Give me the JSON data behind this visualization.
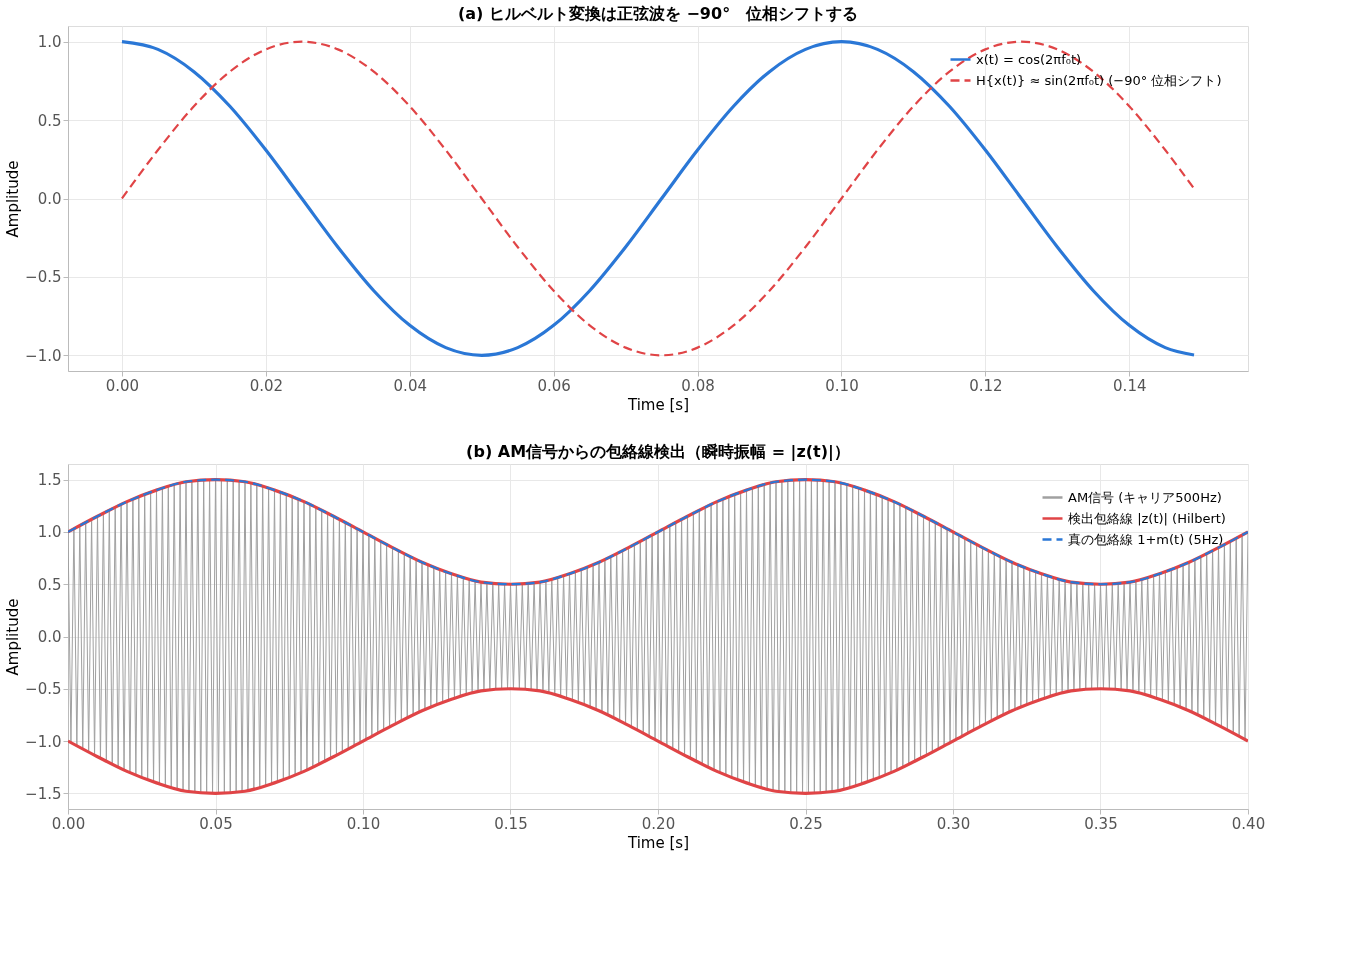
{
  "chart_data": [
    {
      "type": "line",
      "title": "(a) ヒルベルト変換は正弦波を −90°　位相シフトする",
      "xlabel": "Time [s]",
      "ylabel": "Amplitude",
      "x": [
        0,
        0.005,
        0.01,
        0.015,
        0.02,
        0.025,
        0.03,
        0.035,
        0.04,
        0.045,
        0.05,
        0.055,
        0.06,
        0.065,
        0.07,
        0.075,
        0.08,
        0.085,
        0.09,
        0.095,
        0.1,
        0.105,
        0.11,
        0.115,
        0.12,
        0.125,
        0.13,
        0.135,
        0.14,
        0.145,
        0.149
      ],
      "series": [
        {
          "name": "x(t) = cos(2πf₀t)",
          "color": "#2a77d6",
          "line_style": "solid",
          "values": [
            1,
            0.951,
            0.809,
            0.588,
            0.309,
            0,
            -0.309,
            -0.588,
            -0.809,
            -0.951,
            -1,
            -0.951,
            -0.809,
            -0.588,
            -0.309,
            0,
            0.309,
            0.588,
            0.809,
            0.951,
            1,
            0.951,
            0.809,
            0.588,
            0.309,
            0,
            -0.309,
            -0.588,
            -0.809,
            -0.951,
            -0.998
          ]
        },
        {
          "name": "H{x(t)} ≈ sin(2πf₀t)  (−90° 位相シフト)",
          "color": "#e04446",
          "line_style": "dashed",
          "values": [
            0,
            0.309,
            0.588,
            0.809,
            0.951,
            1,
            0.951,
            0.809,
            0.588,
            0.309,
            0,
            -0.309,
            -0.588,
            -0.809,
            -0.951,
            -1,
            -0.951,
            -0.809,
            -0.588,
            -0.309,
            0,
            0.309,
            0.588,
            0.809,
            0.951,
            1,
            0.951,
            0.809,
            0.588,
            0.309,
            0.063
          ]
        }
      ],
      "xlim": [
        -0.0075,
        0.1565
      ],
      "xticks": [
        {
          "value": 0,
          "label": "0.00"
        },
        {
          "value": 0.02,
          "label": "0.02"
        },
        {
          "value": 0.04,
          "label": "0.04"
        },
        {
          "value": 0.06,
          "label": "0.06"
        },
        {
          "value": 0.08,
          "label": "0.08"
        },
        {
          "value": 0.1,
          "label": "0.10"
        },
        {
          "value": 0.12,
          "label": "0.12"
        },
        {
          "value": 0.14,
          "label": "0.14"
        }
      ],
      "ylim": [
        -1.1,
        1.1
      ],
      "yticks": [
        {
          "value": -1,
          "label": "−1.0"
        },
        {
          "value": -0.5,
          "label": "−0.5"
        },
        {
          "value": 0,
          "label": "0.0"
        },
        {
          "value": 0.5,
          "label": "0.5"
        },
        {
          "value": 1,
          "label": "1.0"
        }
      ],
      "grid": true,
      "legend": "top right"
    },
    {
      "type": "line",
      "title": "(b) AM信号からの包絡線検出（瞬時振幅 = |z(t)|）",
      "xlabel": "Time [s]",
      "ylabel": "Amplitude",
      "series": [
        {
          "name": "AM信号 (キャリア500Hz)",
          "color": "#a0a0a0",
          "line_style": "solid",
          "x": [
            0,
            0.001,
            0.002,
            0.003,
            0.004,
            0.005,
            0.006,
            0.007,
            0.008,
            0.009,
            0.01,
            0.011,
            0.012,
            0.013,
            0.014,
            0.015,
            0.016,
            0.017,
            0.018,
            0.019,
            0.02,
            0.021,
            0.022,
            0.023,
            0.024,
            0.025,
            0.026,
            0.027,
            0.028,
            0.029,
            0.03,
            0.031,
            0.032,
            0.033,
            0.034,
            0.035,
            0.036,
            0.037,
            0.038,
            0.039,
            0.04,
            0.041,
            0.042,
            0.043,
            0.044,
            0.045,
            0.046,
            0.047,
            0.048,
            0.049,
            0.05,
            0.051,
            0.052,
            0.053,
            0.054,
            0.055,
            0.056,
            0.057,
            0.058,
            0.059,
            0.06,
            0.061,
            0.062,
            0.063,
            0.064,
            0.065,
            0.066,
            0.067,
            0.068,
            0.069,
            0.07,
            0.071,
            0.072,
            0.073,
            0.074,
            0.075,
            0.076,
            0.077,
            0.078,
            0.079,
            0.08,
            0.081,
            0.082,
            0.083,
            0.084,
            0.085,
            0.086,
            0.087,
            0.088,
            0.089,
            0.09,
            0.091,
            0.092,
            0.093,
            0.094,
            0.095,
            0.096,
            0.097,
            0.098,
            0.099,
            0.1,
            0.101,
            0.102,
            0.103,
            0.104,
            0.105,
            0.106,
            0.107,
            0.108,
            0.109,
            0.11,
            0.111,
            0.112,
            0.113,
            0.114,
            0.115,
            0.116,
            0.117,
            0.118,
            0.119,
            0.12,
            0.121,
            0.122,
            0.123,
            0.124,
            0.125,
            0.126,
            0.127,
            0.128,
            0.129,
            0.13,
            0.131,
            0.132,
            0.133,
            0.134,
            0.135,
            0.136,
            0.137,
            0.138,
            0.139,
            0.14,
            0.141,
            0.142,
            0.143,
            0.144,
            0.145,
            0.146,
            0.147,
            0.148,
            0.149,
            0.15,
            0.151,
            0.152,
            0.153,
            0.154,
            0.155,
            0.156,
            0.157,
            0.158,
            0.159,
            0.16,
            0.161,
            0.162,
            0.163,
            0.164,
            0.165,
            0.166,
            0.167,
            0.168,
            0.169,
            0.17,
            0.171,
            0.172,
            0.173,
            0.174,
            0.175,
            0.176,
            0.177,
            0.178,
            0.179,
            0.18,
            0.181,
            0.182,
            0.183,
            0.184,
            0.185,
            0.186,
            0.187,
            0.188,
            0.189,
            0.19,
            0.191,
            0.192,
            0.193,
            0.194,
            0.195,
            0.196,
            0.197,
            0.198,
            0.199,
            0.2,
            0.201,
            0.202,
            0.203,
            0.204,
            0.205,
            0.206,
            0.207,
            0.208,
            0.209,
            0.21,
            0.211,
            0.212,
            0.213,
            0.214,
            0.215,
            0.216,
            0.217,
            0.218,
            0.219,
            0.22,
            0.221,
            0.222,
            0.223,
            0.224,
            0.225,
            0.226,
            0.227,
            0.228,
            0.229,
            0.23,
            0.231,
            0.232,
            0.233,
            0.234,
            0.235,
            0.236,
            0.237,
            0.238,
            0.239,
            0.24,
            0.241,
            0.242,
            0.243,
            0.244,
            0.245,
            0.246,
            0.247,
            0.248,
            0.249,
            0.25,
            0.251,
            0.252,
            0.253,
            0.254,
            0.255,
            0.256,
            0.257,
            0.258,
            0.259,
            0.26,
            0.261,
            0.262,
            0.263,
            0.264,
            0.265,
            0.266,
            0.267,
            0.268,
            0.269,
            0.27,
            0.271,
            0.272,
            0.273,
            0.274,
            0.275,
            0.276,
            0.277,
            0.278,
            0.279,
            0.28,
            0.281,
            0.282,
            0.283,
            0.284,
            0.285,
            0.286,
            0.287,
            0.288,
            0.289,
            0.29,
            0.291,
            0.292,
            0.293,
            0.294,
            0.295,
            0.296,
            0.297,
            0.298,
            0.299,
            0.3,
            0.301,
            0.302,
            0.303,
            0.304,
            0.305,
            0.306,
            0.307,
            0.308,
            0.309,
            0.31,
            0.311,
            0.312,
            0.313,
            0.314,
            0.315,
            0.316,
            0.317,
            0.318,
            0.319,
            0.32,
            0.321,
            0.322,
            0.323,
            0.324,
            0.325,
            0.326,
            0.327,
            0.328,
            0.329,
            0.33,
            0.331,
            0.332,
            0.333,
            0.334,
            0.335,
            0.336,
            0.337,
            0.338,
            0.339,
            0.34,
            0.341,
            0.342,
            0.343,
            0.344,
            0.345,
            0.346,
            0.347,
            0.348,
            0.349,
            0.35,
            0.351,
            0.352,
            0.353,
            0.354,
            0.355,
            0.356,
            0.357,
            0.358,
            0.359,
            0.36,
            0.361,
            0.362,
            0.363,
            0.364,
            0.365,
            0.366,
            0.367,
            0.368,
            0.369,
            0.37,
            0.371,
            0.372,
            0.373,
            0.374,
            0.375,
            0.376,
            0.377,
            0.378,
            0.379,
            0.38,
            0.381,
            0.382,
            0.383,
            0.384,
            0.385,
            0.386,
            0.387,
            0.388,
            0.389,
            0.39,
            0.391,
            0.392,
            0.393,
            0.394,
            0.395,
            0.396,
            0.397,
            0.398,
            0.399,
            0.4
          ],
          "values": [
            1.0,
            -1.02,
            1.03,
            -1.05,
            1.06,
            -1.08,
            1.09,
            -1.11,
            1.12,
            -1.14,
            1.15,
            -1.17,
            1.18,
            -1.2,
            1.21,
            -1.23,
            1.24,
            -1.25,
            1.27,
            -1.28,
            1.29,
            -1.31,
            1.32,
            -1.33,
            1.34,
            -1.35,
            1.36,
            -1.38,
            1.39,
            -1.4,
            1.4,
            -1.41,
            1.42,
            -1.43,
            1.44,
            -1.45,
            1.45,
            -1.46,
            1.47,
            -1.47,
            1.48,
            -1.48,
            1.48,
            -1.49,
            1.49,
            -1.49,
            1.5,
            -1.5,
            1.5,
            -1.5,
            1.5,
            -1.5,
            1.5,
            -1.5,
            1.5,
            -1.49,
            1.49,
            -1.49,
            1.48,
            -1.48,
            1.48,
            -1.47,
            1.47,
            -1.46,
            1.45,
            -1.45,
            1.44,
            -1.43,
            1.42,
            -1.41,
            1.4,
            -1.4,
            1.39,
            -1.38,
            1.36,
            -1.35,
            1.34,
            -1.33,
            1.32,
            -1.31,
            1.29,
            -1.28,
            1.27,
            -1.25,
            1.24,
            -1.23,
            1.21,
            -1.2,
            1.18,
            -1.17,
            1.15,
            -1.14,
            1.12,
            -1.11,
            1.09,
            -1.08,
            1.06,
            -1.05,
            1.03,
            -1.02,
            1.0,
            -0.98,
            0.97,
            -0.95,
            0.94,
            -0.92,
            0.91,
            -0.89,
            0.88,
            -0.86,
            0.85,
            -0.83,
            0.82,
            -0.8,
            0.79,
            -0.77,
            0.76,
            -0.75,
            0.73,
            -0.72,
            0.71,
            -0.69,
            0.68,
            -0.67,
            0.66,
            -0.65,
            0.64,
            -0.62,
            0.61,
            -0.6,
            0.6,
            -0.59,
            0.58,
            -0.57,
            0.56,
            -0.55,
            0.55,
            -0.54,
            0.53,
            -0.53,
            0.52,
            -0.52,
            0.52,
            -0.51,
            0.51,
            -0.51,
            0.5,
            -0.5,
            0.5,
            -0.5,
            0.5,
            -0.5,
            0.5,
            -0.5,
            0.5,
            -0.51,
            0.51,
            -0.51,
            0.52,
            -0.52,
            0.52,
            -0.53,
            0.53,
            -0.54,
            0.55,
            -0.55,
            0.56,
            -0.57,
            0.58,
            -0.59,
            0.6,
            -0.6,
            0.61,
            -0.62,
            0.64,
            -0.65,
            0.66,
            -0.67,
            0.68,
            -0.69,
            0.71,
            -0.72,
            0.73,
            -0.75,
            0.76,
            -0.77,
            0.79,
            -0.8,
            0.82,
            -0.83,
            0.85,
            -0.86,
            0.88,
            -0.89,
            0.91,
            -0.92,
            0.94,
            -0.95,
            0.97,
            -0.98,
            1.0,
            -1.02,
            1.03,
            -1.05,
            1.06,
            -1.08,
            1.09,
            -1.11,
            1.12,
            -1.14,
            1.15,
            -1.17,
            1.18,
            -1.2,
            1.21,
            -1.23,
            1.24,
            -1.25,
            1.27,
            -1.28,
            1.29,
            -1.31,
            1.32,
            -1.33,
            1.34,
            -1.35,
            1.36,
            -1.38,
            1.39,
            -1.4,
            1.4,
            -1.41,
            1.42,
            -1.43,
            1.44,
            -1.45,
            1.45,
            -1.46,
            1.47,
            -1.47,
            1.48,
            -1.48,
            1.48,
            -1.49,
            1.49,
            -1.49,
            1.5,
            -1.5,
            1.5,
            -1.5,
            1.5,
            -1.5,
            1.5,
            -1.5,
            1.5,
            -1.49,
            1.49,
            -1.49,
            1.48,
            -1.48,
            1.48,
            -1.47,
            1.47,
            -1.46,
            1.45,
            -1.45,
            1.44,
            -1.43,
            1.42,
            -1.41,
            1.4,
            -1.4,
            1.39,
            -1.38,
            1.36,
            -1.35,
            1.34,
            -1.33,
            1.32,
            -1.31,
            1.29,
            -1.28,
            1.27,
            -1.25,
            1.24,
            -1.23,
            1.21,
            -1.2,
            1.18,
            -1.17,
            1.15,
            -1.14,
            1.12,
            -1.11,
            1.09,
            -1.08,
            1.06,
            -1.05,
            1.03,
            -1.02,
            1.0,
            -0.98,
            0.97,
            -0.95,
            0.94,
            -0.92,
            0.91,
            -0.89,
            0.88,
            -0.86,
            0.85,
            -0.83,
            0.82,
            -0.8,
            0.79,
            -0.77,
            0.76,
            -0.75,
            0.73,
            -0.72,
            0.71,
            -0.69,
            0.68,
            -0.67,
            0.66,
            -0.65,
            0.64,
            -0.62,
            0.61,
            -0.6,
            0.6,
            -0.59,
            0.58,
            -0.57,
            0.56,
            -0.55,
            0.55,
            -0.54,
            0.53,
            -0.53,
            0.52,
            -0.52,
            0.52,
            -0.51,
            0.51,
            -0.51,
            0.5,
            -0.5,
            0.5,
            -0.5,
            0.5,
            -0.5,
            0.5,
            -0.5,
            0.5,
            -0.51,
            0.51,
            -0.51,
            0.52,
            -0.52,
            0.52,
            -0.53,
            0.53,
            -0.54,
            0.55,
            -0.55,
            0.56,
            -0.57,
            0.58,
            -0.59,
            0.6,
            -0.6,
            0.61,
            -0.62,
            0.64,
            -0.65,
            0.66,
            -0.67,
            0.68,
            -0.69,
            0.71,
            -0.72,
            0.73,
            -0.75,
            0.76,
            -0.77,
            0.79,
            -0.8,
            0.82,
            -0.83,
            0.85,
            -0.86,
            0.88,
            -0.89,
            0.91,
            -0.92,
            0.94,
            -0.95,
            0.97,
            -0.98,
            1.0
          ]
        },
        {
          "name": "検出包絡線 |z(t)| (Hilbert)",
          "color": "#e04446",
          "line_style": "solid",
          "x": [
            0,
            0.01,
            0.02,
            0.03,
            0.04,
            0.05,
            0.06,
            0.07,
            0.08,
            0.09,
            0.1,
            0.11,
            0.12,
            0.13,
            0.14,
            0.15,
            0.16,
            0.17,
            0.18,
            0.19,
            0.2,
            0.21,
            0.22,
            0.23,
            0.24,
            0.25,
            0.26,
            0.27,
            0.28,
            0.29,
            0.3,
            0.31,
            0.32,
            0.33,
            0.34,
            0.35,
            0.36,
            0.37,
            0.38,
            0.39,
            0.4
          ],
          "values": [
            1.0,
            1.15,
            1.29,
            1.4,
            1.48,
            1.5,
            1.48,
            1.4,
            1.29,
            1.15,
            1.0,
            0.85,
            0.71,
            0.6,
            0.52,
            0.5,
            0.52,
            0.6,
            0.71,
            0.85,
            1.0,
            1.15,
            1.29,
            1.4,
            1.48,
            1.5,
            1.48,
            1.4,
            1.29,
            1.15,
            1.0,
            0.85,
            0.71,
            0.6,
            0.52,
            0.5,
            0.52,
            0.6,
            0.71,
            0.85,
            1.0
          ]
        },
        {
          "color": "#e04446",
          "line_style": "solid",
          "x": [
            0,
            0.01,
            0.02,
            0.03,
            0.04,
            0.05,
            0.06,
            0.07,
            0.08,
            0.09,
            0.1,
            0.11,
            0.12,
            0.13,
            0.14,
            0.15,
            0.16,
            0.17,
            0.18,
            0.19,
            0.2,
            0.21,
            0.22,
            0.23,
            0.24,
            0.25,
            0.26,
            0.27,
            0.28,
            0.29,
            0.3,
            0.31,
            0.32,
            0.33,
            0.34,
            0.35,
            0.36,
            0.37,
            0.38,
            0.39,
            0.4
          ],
          "values": [
            -1.0,
            -1.15,
            -1.29,
            -1.4,
            -1.48,
            -1.5,
            -1.48,
            -1.4,
            -1.29,
            -1.15,
            -1.0,
            -0.85,
            -0.71,
            -0.6,
            -0.52,
            -0.5,
            -0.52,
            -0.6,
            -0.71,
            -0.85,
            -1.0,
            -1.15,
            -1.29,
            -1.4,
            -1.48,
            -1.5,
            -1.48,
            -1.4,
            -1.29,
            -1.15,
            -1.0,
            -0.85,
            -0.71,
            -0.6,
            -0.52,
            -0.5,
            -0.52,
            -0.6,
            -0.71,
            -0.85,
            -1.0
          ]
        },
        {
          "name": "真の包絡線 1+m(t) (5Hz)",
          "color": "#2a77d6",
          "line_style": "dashed",
          "x": [
            0,
            0.01,
            0.02,
            0.03,
            0.04,
            0.05,
            0.06,
            0.07,
            0.08,
            0.09,
            0.1,
            0.11,
            0.12,
            0.13,
            0.14,
            0.15,
            0.16,
            0.17,
            0.18,
            0.19,
            0.2,
            0.21,
            0.22,
            0.23,
            0.24,
            0.25,
            0.26,
            0.27,
            0.28,
            0.29,
            0.3,
            0.31,
            0.32,
            0.33,
            0.34,
            0.35,
            0.36,
            0.37,
            0.38,
            0.39,
            0.4
          ],
          "values": [
            1.0,
            1.15,
            1.29,
            1.4,
            1.48,
            1.5,
            1.48,
            1.4,
            1.29,
            1.15,
            1.0,
            0.85,
            0.71,
            0.6,
            0.52,
            0.5,
            0.52,
            0.6,
            0.71,
            0.85,
            1.0,
            1.15,
            1.29,
            1.4,
            1.48,
            1.5,
            1.48,
            1.4,
            1.29,
            1.15,
            1.0,
            0.85,
            0.71,
            0.6,
            0.52,
            0.5,
            0.52,
            0.6,
            0.71,
            0.85,
            1.0
          ]
        }
      ],
      "xlim": [
        0,
        0.4
      ],
      "xticks": [
        {
          "value": 0,
          "label": "0.00"
        },
        {
          "value": 0.05,
          "label": "0.05"
        },
        {
          "value": 0.1,
          "label": "0.10"
        },
        {
          "value": 0.15,
          "label": "0.15"
        },
        {
          "value": 0.2,
          "label": "0.20"
        },
        {
          "value": 0.25,
          "label": "0.25"
        },
        {
          "value": 0.3,
          "label": "0.30"
        },
        {
          "value": 0.35,
          "label": "0.35"
        },
        {
          "value": 0.4,
          "label": "0.40"
        }
      ],
      "ylim": [
        -1.65,
        1.65
      ],
      "yticks": [
        {
          "value": -1.5,
          "label": "−1.5"
        },
        {
          "value": -1,
          "label": "−1.0"
        },
        {
          "value": -0.5,
          "label": "−0.5"
        },
        {
          "value": 0,
          "label": "0.0"
        },
        {
          "value": 0.5,
          "label": "0.5"
        },
        {
          "value": 1,
          "label": "1.0"
        },
        {
          "value": 1.5,
          "label": "1.5"
        }
      ],
      "grid": true,
      "legend": "top right"
    }
  ]
}
